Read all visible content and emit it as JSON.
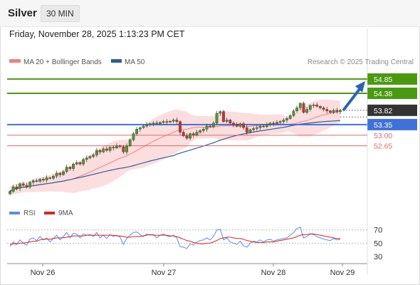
{
  "header": {
    "instrument": "Silver",
    "timeframe": "30 MIN",
    "datetime": "Friday, November 28, 2025 1:13:23 PM CET"
  },
  "legend": {
    "ma20_label": "MA 20 + Bollinger Bands",
    "ma50_label": "MA 50",
    "source": "Research © 2025 Trading Central"
  },
  "colors": {
    "ma20": "#f08080",
    "bollinger_fill": "#fcdede",
    "ma50": "#2e5c9e",
    "resistance": "#4a9a0f",
    "pivot": "#3e72d8",
    "support": "#e06a6a",
    "last_price_tag": "#333333",
    "candle_up": "#4e9a2c",
    "candle_down": "#c8362c",
    "rsi": "#5b8fe0",
    "rsi_ma": "#dd2222",
    "arrow": "#2c64b4"
  },
  "levels": [
    {
      "value": "54.85",
      "type": "resistance"
    },
    {
      "value": "54.38",
      "type": "resistance"
    },
    {
      "value": "53.82",
      "type": "last"
    },
    {
      "value": "53.35",
      "type": "pivot"
    },
    {
      "value": "53.00",
      "type": "support"
    },
    {
      "value": "52.65",
      "type": "support"
    }
  ],
  "rsi_panel": {
    "rsi_label": "RSI",
    "ma_label": "9MA",
    "ticks": [
      "70",
      "50",
      "30"
    ]
  },
  "chart_data": {
    "type": "candlestick",
    "x_labels": [
      "Nov 26",
      "Nov 27",
      "Nov 28",
      "Nov 29"
    ],
    "ylim": [
      51.0,
      55.2
    ],
    "closes": [
      51.15,
      51.3,
      51.25,
      51.4,
      51.35,
      51.3,
      51.45,
      51.5,
      51.48,
      51.55,
      51.52,
      51.6,
      51.58,
      51.65,
      51.75,
      51.7,
      51.8,
      51.95,
      51.9,
      52.05,
      52.1,
      52.05,
      52.2,
      52.25,
      52.3,
      52.35,
      52.5,
      52.45,
      52.55,
      52.5,
      52.6,
      52.58,
      52.65,
      52.62,
      52.45,
      52.65,
      52.85,
      53.05,
      53.2,
      53.25,
      53.3,
      53.35,
      53.38,
      53.4,
      53.38,
      53.42,
      53.45,
      53.44,
      53.46,
      53.5,
      53.45,
      53.1,
      52.98,
      52.9,
      53.05,
      53.0,
      53.1,
      53.15,
      53.2,
      53.3,
      53.28,
      53.4,
      53.72,
      53.78,
      53.45,
      53.5,
      53.4,
      53.35,
      53.3,
      53.38,
      53.25,
      53.1,
      53.18,
      53.22,
      53.25,
      53.3,
      53.28,
      53.35,
      53.4,
      53.38,
      53.42,
      53.45,
      53.5,
      53.55,
      53.65,
      53.8,
      53.9,
      54.05,
      53.75,
      53.85,
      53.98,
      54.0,
      53.95,
      53.9,
      53.85,
      53.8,
      53.75,
      53.82,
      53.78,
      53.82
    ],
    "rsi": [
      45,
      52,
      48,
      55,
      50,
      47,
      56,
      58,
      54,
      60,
      55,
      58,
      52,
      57,
      62,
      55,
      60,
      66,
      58,
      65,
      64,
      58,
      64,
      62,
      63,
      60,
      66,
      58,
      62,
      57,
      63,
      60,
      62,
      59,
      48,
      57,
      62,
      66,
      67,
      63,
      60,
      64,
      62,
      63,
      58,
      62,
      64,
      61,
      60,
      62,
      58,
      45,
      44,
      42,
      49,
      47,
      52,
      54,
      55,
      58,
      55,
      60,
      70,
      71,
      55,
      58,
      52,
      50,
      48,
      53,
      46,
      44,
      50,
      53,
      52,
      55,
      52,
      55,
      56,
      53,
      55,
      56,
      57,
      58,
      62,
      66,
      72,
      74,
      58,
      60,
      64,
      63,
      60,
      58,
      56,
      55,
      54,
      57,
      55,
      56
    ],
    "rsi_ma": [
      48,
      49,
      49,
      50,
      50,
      51,
      52,
      53,
      53,
      55,
      56,
      56,
      56,
      57,
      58,
      58,
      58,
      59,
      60,
      61,
      61,
      61,
      61,
      62,
      62,
      62,
      62,
      62,
      62,
      62,
      62,
      62,
      61,
      61,
      60,
      59,
      59,
      60,
      60,
      60,
      61,
      62,
      63,
      62,
      62,
      62,
      62,
      62,
      61,
      61,
      60,
      58,
      56,
      54,
      53,
      51,
      50,
      49,
      49,
      50,
      50,
      52,
      54,
      57,
      58,
      59,
      59,
      58,
      57,
      57,
      56,
      54,
      53,
      52,
      51,
      51,
      51,
      52,
      52,
      52,
      53,
      54,
      55,
      56,
      57,
      58,
      60,
      62,
      63,
      63,
      64,
      64,
      63,
      62,
      61,
      60,
      59,
      58,
      57,
      57
    ],
    "rsi_ylim": [
      30,
      75
    ]
  }
}
